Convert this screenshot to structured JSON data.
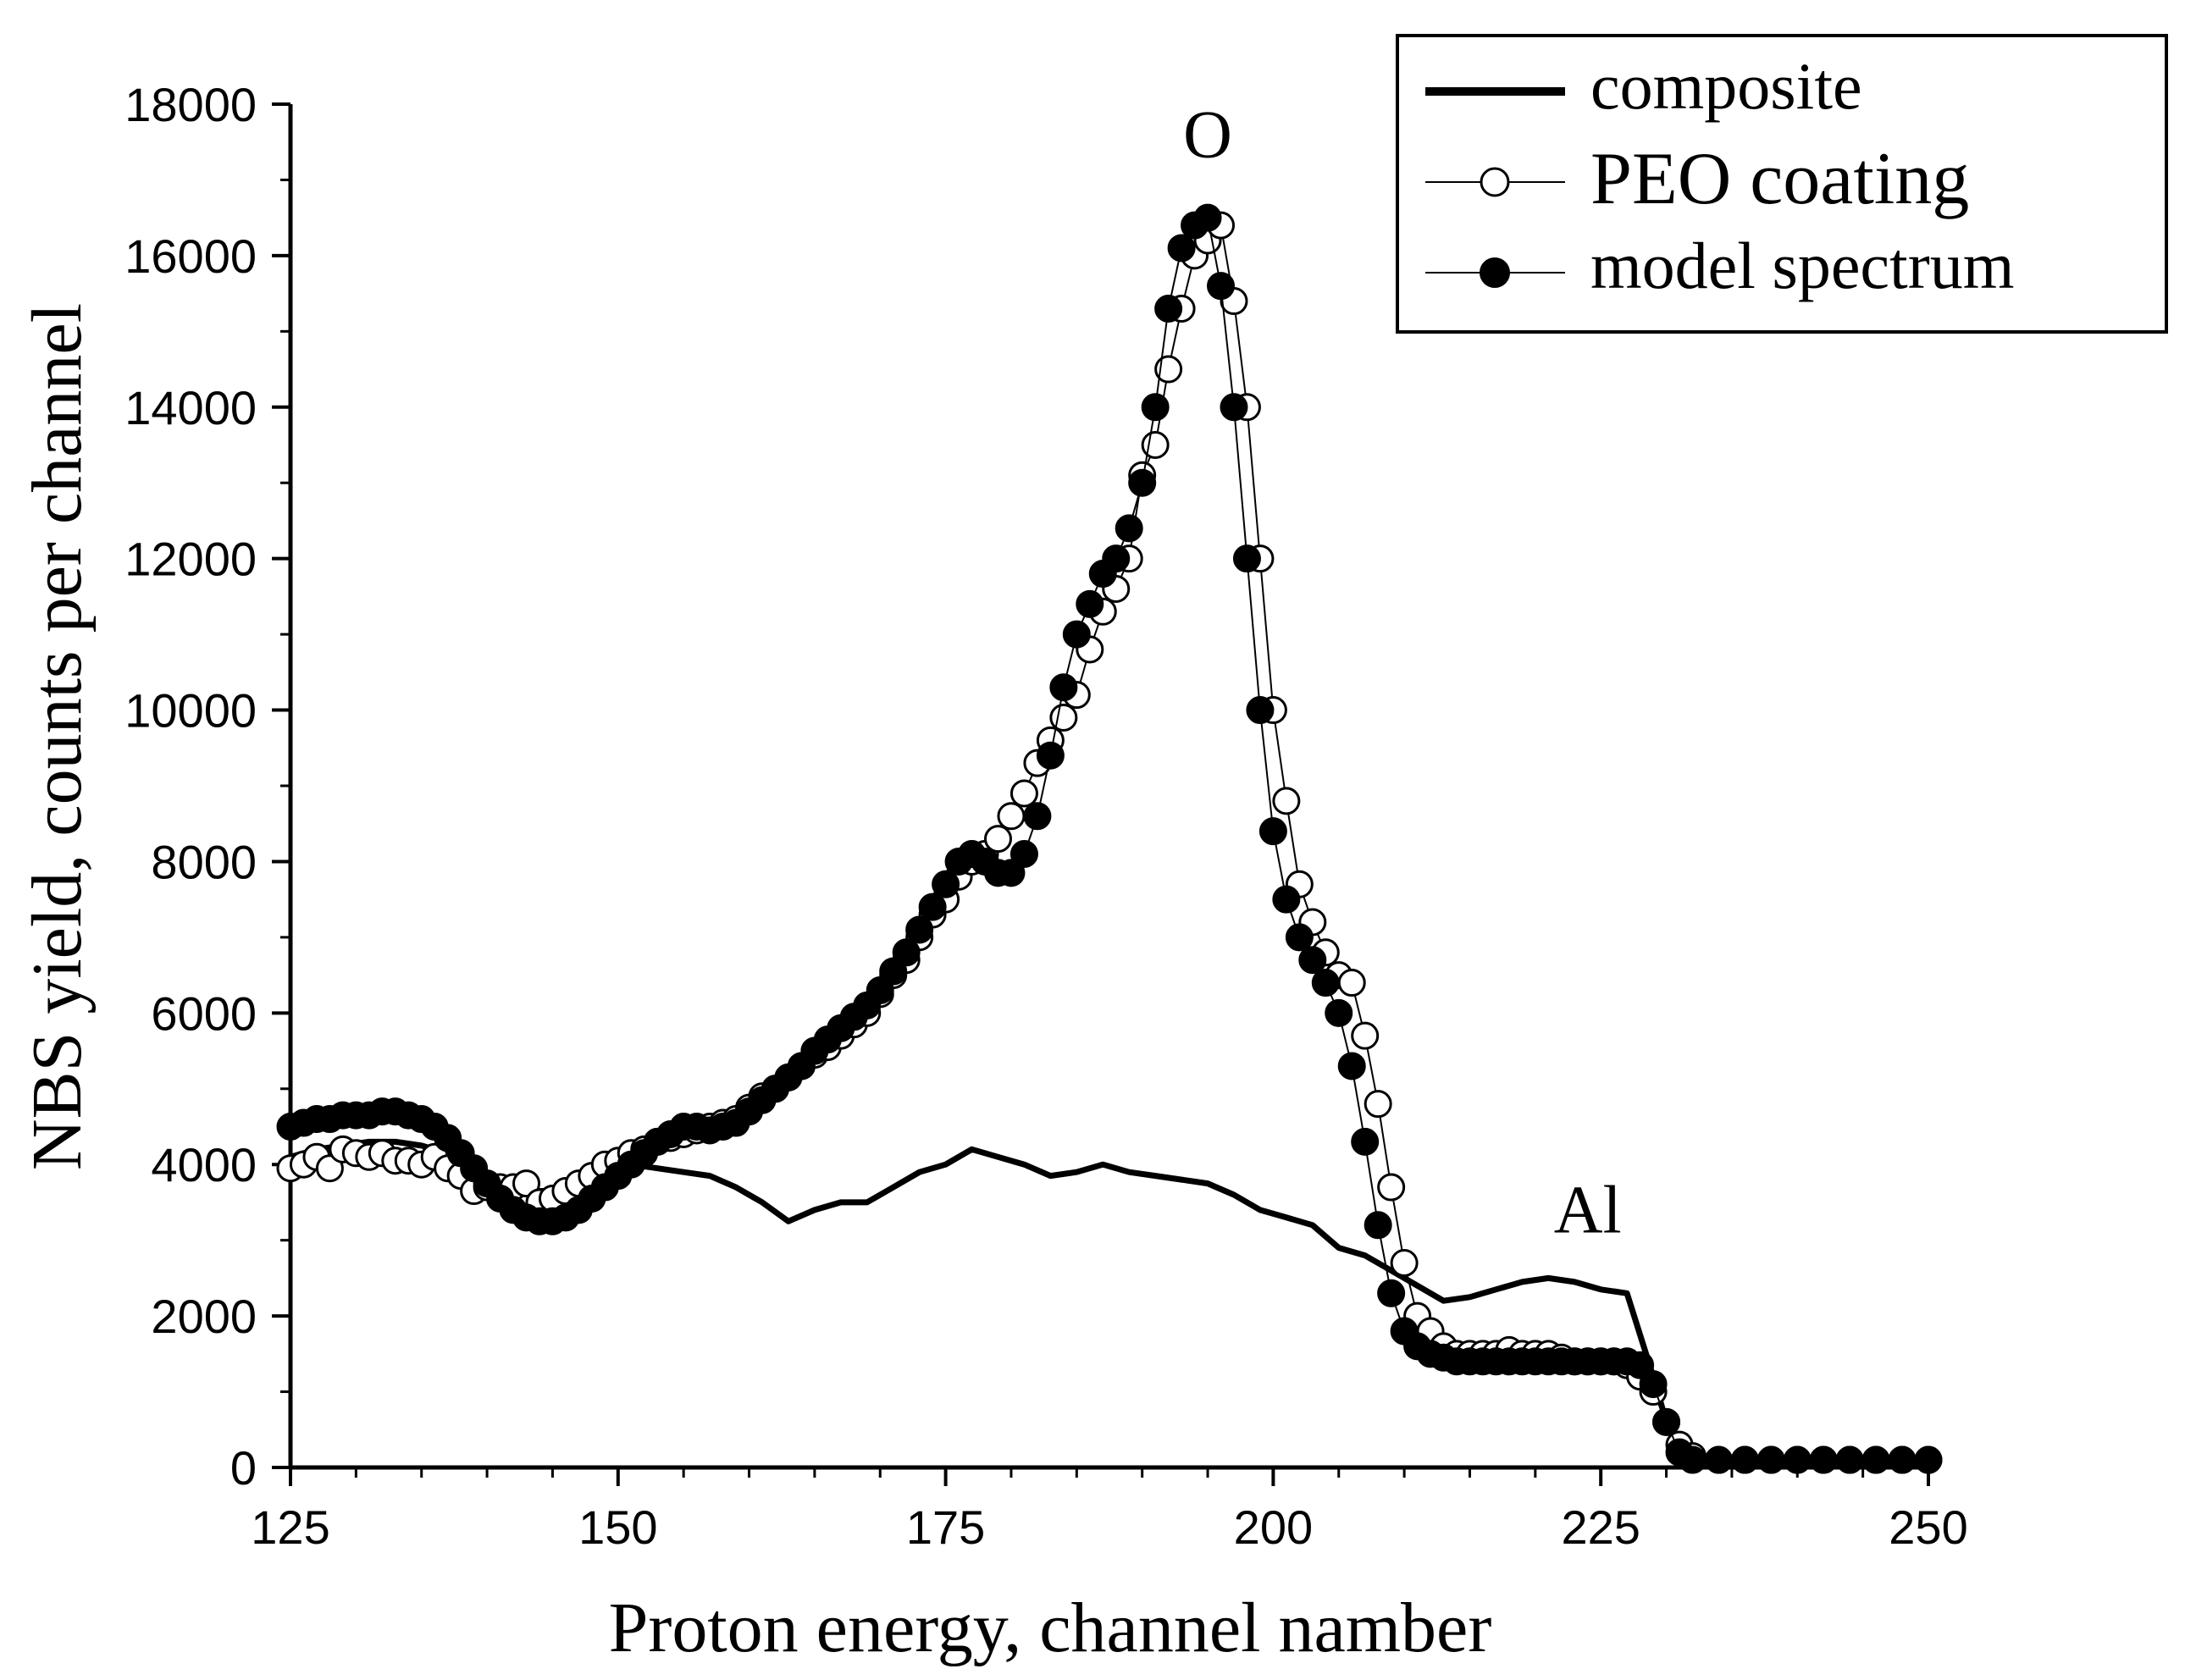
{
  "chart_data": {
    "type": "scatter",
    "title": "",
    "xlabel": "Proton energy, channel namber",
    "ylabel": "NBS yield, counts per channel",
    "xlim": [
      125,
      250
    ],
    "ylim": [
      0,
      18000
    ],
    "xticks": [
      125,
      150,
      175,
      200,
      225,
      250
    ],
    "yticks": [
      0,
      2000,
      4000,
      6000,
      8000,
      10000,
      12000,
      14000,
      16000,
      18000
    ],
    "grid": false,
    "legend_position": "top-right",
    "annotations": [
      {
        "text": "O",
        "x": 195,
        "y": 17300
      },
      {
        "text": "Al",
        "x": 224,
        "y": 3100
      }
    ],
    "series": [
      {
        "name": "composite",
        "style": "line",
        "x": [
          125,
          127,
          129,
          131,
          133,
          135,
          137,
          139,
          141,
          143,
          145,
          147,
          149,
          151,
          153,
          155,
          157,
          159,
          161,
          163,
          165,
          167,
          169,
          171,
          173,
          175,
          177,
          179,
          181,
          183,
          185,
          187,
          189,
          191,
          193,
          195,
          197,
          199,
          201,
          203,
          205,
          207,
          209,
          211,
          213,
          215,
          217,
          219,
          221,
          223,
          225,
          227,
          229,
          230,
          231,
          232,
          235,
          240,
          245,
          250
        ],
        "y": [
          4100,
          4200,
          4250,
          4300,
          4300,
          4250,
          4150,
          3900,
          3700,
          3650,
          3650,
          3800,
          3950,
          4000,
          3950,
          3900,
          3850,
          3700,
          3500,
          3250,
          3400,
          3500,
          3500,
          3700,
          3900,
          4000,
          4200,
          4100,
          4000,
          3850,
          3900,
          4000,
          3900,
          3850,
          3800,
          3750,
          3600,
          3400,
          3300,
          3200,
          2900,
          2800,
          2600,
          2400,
          2200,
          2250,
          2350,
          2450,
          2500,
          2450,
          2350,
          2300,
          1200,
          600,
          250,
          120,
          100,
          100,
          100,
          100
        ]
      },
      {
        "name": "PEO coating",
        "style": "open-circle",
        "x": [
          125,
          126,
          127,
          128,
          129,
          130,
          131,
          132,
          133,
          134,
          135,
          136,
          137,
          138,
          139,
          140,
          141,
          142,
          143,
          144,
          145,
          146,
          147,
          148,
          149,
          150,
          151,
          152,
          153,
          154,
          155,
          156,
          157,
          158,
          159,
          160,
          161,
          162,
          163,
          164,
          165,
          166,
          167,
          168,
          169,
          170,
          171,
          172,
          173,
          174,
          175,
          176,
          177,
          178,
          179,
          180,
          181,
          182,
          183,
          184,
          185,
          186,
          187,
          188,
          189,
          190,
          191,
          192,
          193,
          194,
          195,
          196,
          197,
          198,
          199,
          200,
          201,
          202,
          203,
          204,
          205,
          206,
          207,
          208,
          209,
          210,
          211,
          212,
          213,
          214,
          215,
          216,
          217,
          218,
          219,
          220,
          221,
          222,
          223,
          224,
          225,
          226,
          227,
          228,
          229,
          230,
          231,
          232,
          234,
          236,
          238,
          240,
          242,
          244,
          246,
          248,
          250
        ],
        "y": [
          3950,
          4000,
          4100,
          3950,
          4200,
          4150,
          4100,
          4150,
          4050,
          4050,
          4000,
          4100,
          3950,
          3850,
          3650,
          3700,
          3700,
          3700,
          3750,
          3500,
          3550,
          3650,
          3750,
          3850,
          4000,
          4050,
          4150,
          4200,
          4300,
          4350,
          4400,
          4450,
          4500,
          4550,
          4600,
          4750,
          4900,
          5000,
          5150,
          5300,
          5450,
          5550,
          5700,
          5850,
          6000,
          6250,
          6500,
          6700,
          7000,
          7300,
          7500,
          7800,
          8000,
          8100,
          8300,
          8600,
          8900,
          9300,
          9600,
          9900,
          10200,
          10800,
          11300,
          11600,
          12000,
          13100,
          13500,
          14500,
          15300,
          16000,
          16200,
          16400,
          15400,
          14000,
          12000,
          10000,
          8800,
          7700,
          7200,
          6800,
          6500,
          6400,
          5700,
          4800,
          3700,
          2700,
          2000,
          1800,
          1600,
          1500,
          1500,
          1500,
          1500,
          1550,
          1500,
          1500,
          1500,
          1450,
          1400,
          1400,
          1400,
          1400,
          1350,
          1200,
          1000,
          600,
          300,
          150,
          100,
          100,
          100,
          100,
          100,
          100,
          100,
          100,
          100
        ]
      },
      {
        "name": "model spectrum",
        "style": "filled-circle",
        "x": [
          125,
          126,
          127,
          128,
          129,
          130,
          131,
          132,
          133,
          134,
          135,
          136,
          137,
          138,
          139,
          140,
          141,
          142,
          143,
          144,
          145,
          146,
          147,
          148,
          149,
          150,
          151,
          152,
          153,
          154,
          155,
          156,
          157,
          158,
          159,
          160,
          161,
          162,
          163,
          164,
          165,
          166,
          167,
          168,
          169,
          170,
          171,
          172,
          173,
          174,
          175,
          176,
          177,
          178,
          179,
          180,
          181,
          182,
          183,
          184,
          185,
          186,
          187,
          188,
          189,
          190,
          191,
          192,
          193,
          194,
          195,
          196,
          197,
          198,
          199,
          200,
          201,
          202,
          203,
          204,
          205,
          206,
          207,
          208,
          209,
          210,
          211,
          212,
          213,
          214,
          215,
          216,
          217,
          218,
          219,
          220,
          221,
          222,
          223,
          224,
          225,
          226,
          227,
          228,
          229,
          230,
          231,
          232,
          234,
          236,
          238,
          240,
          242,
          244,
          246,
          248,
          250
        ],
        "y": [
          4500,
          4550,
          4600,
          4600,
          4650,
          4650,
          4650,
          4700,
          4700,
          4650,
          4600,
          4500,
          4350,
          4150,
          3950,
          3750,
          3550,
          3400,
          3300,
          3250,
          3250,
          3300,
          3400,
          3550,
          3700,
          3850,
          4000,
          4150,
          4300,
          4400,
          4500,
          4500,
          4450,
          4500,
          4550,
          4700,
          4850,
          5000,
          5150,
          5300,
          5500,
          5650,
          5800,
          5950,
          6100,
          6300,
          6550,
          6800,
          7100,
          7400,
          7700,
          8000,
          8100,
          8000,
          7850,
          7850,
          8100,
          8600,
          9400,
          10300,
          11000,
          11400,
          11800,
          12000,
          12400,
          13000,
          14000,
          15300,
          16100,
          16400,
          16500,
          15600,
          14000,
          12000,
          10000,
          8400,
          7500,
          7000,
          6700,
          6400,
          6000,
          5300,
          4300,
          3200,
          2300,
          1800,
          1600,
          1500,
          1450,
          1400,
          1400,
          1400,
          1400,
          1400,
          1400,
          1400,
          1400,
          1400,
          1400,
          1400,
          1400,
          1400,
          1400,
          1350,
          1100,
          600,
          200,
          100,
          100,
          100,
          100,
          100,
          100,
          100,
          100,
          100,
          100
        ]
      }
    ]
  }
}
